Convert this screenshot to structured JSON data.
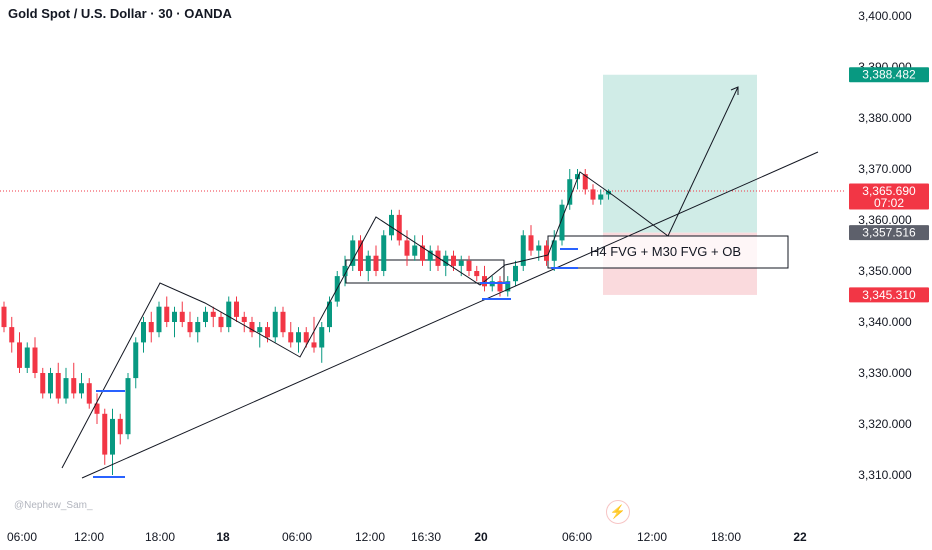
{
  "header": {
    "title": "Gold Spot / U.S. Dollar · 30 · OANDA"
  },
  "watermark": "@Nephew_Sam_",
  "icons": {
    "alert": "lightning-bolt-icon"
  },
  "colors": {
    "bull": "#089981",
    "bear": "#f23645",
    "blue": "#2962ff",
    "target_zone": "#d0ece7",
    "stop_zone": "#fadadd",
    "last_price_line": "#f23645",
    "gray_tag": "#5d606b"
  },
  "chart_data": {
    "type": "candlestick",
    "symbol": "XAUUSD",
    "timeframe": "30",
    "ylim": [
      3303,
      3405
    ],
    "y_ticks": [
      "3,310.000",
      "3,320.000",
      "3,330.000",
      "3,340.000",
      "3,350.000",
      "3,360.000",
      "3,370.000",
      "3,380.000",
      "3,390.000",
      "3,400.000"
    ],
    "x_ticks": [
      {
        "label": "06:00",
        "bold": false
      },
      {
        "label": "12:00",
        "bold": false
      },
      {
        "label": "18:00",
        "bold": false
      },
      {
        "label": "18",
        "bold": true
      },
      {
        "label": "06:00",
        "bold": false
      },
      {
        "label": "12:00",
        "bold": false
      },
      {
        "label": "16:30",
        "bold": false
      },
      {
        "label": "20",
        "bold": true
      },
      {
        "label": "06:00",
        "bold": false
      },
      {
        "label": "12:00",
        "bold": false
      },
      {
        "label": "18:00",
        "bold": false
      },
      {
        "label": "22",
        "bold": true
      }
    ],
    "price_tags": [
      {
        "label": "3,388.482",
        "value": 3388.482,
        "kind": "target"
      },
      {
        "label": "3,365.690",
        "sub": "07:02",
        "value": 3365.69,
        "kind": "last"
      },
      {
        "label": "3,357.516",
        "value": 3357.516,
        "kind": "gray"
      },
      {
        "label": "3,345.310",
        "value": 3345.31,
        "kind": "stop"
      }
    ],
    "last_price": 3365.69,
    "annotation": "H4 FVG + M30 FVG + OB",
    "position": {
      "entry": 3357.516,
      "target": 3388.482,
      "stop": 3345.31
    },
    "candles": [
      {
        "o": 3343,
        "h": 3344,
        "l": 3338,
        "c": 3339
      },
      {
        "o": 3339,
        "h": 3341,
        "l": 3334,
        "c": 3336
      },
      {
        "o": 3336,
        "h": 3338,
        "l": 3330,
        "c": 3331
      },
      {
        "o": 3331,
        "h": 3336,
        "l": 3330,
        "c": 3335
      },
      {
        "o": 3335,
        "h": 3337,
        "l": 3329,
        "c": 3330
      },
      {
        "o": 3330,
        "h": 3331,
        "l": 3325,
        "c": 3326
      },
      {
        "o": 3326,
        "h": 3331,
        "l": 3325,
        "c": 3330
      },
      {
        "o": 3330,
        "h": 3332,
        "l": 3324,
        "c": 3325
      },
      {
        "o": 3325,
        "h": 3331,
        "l": 3324,
        "c": 3329
      },
      {
        "o": 3329,
        "h": 3332,
        "l": 3325,
        "c": 3326
      },
      {
        "o": 3326,
        "h": 3330,
        "l": 3325,
        "c": 3328
      },
      {
        "o": 3328,
        "h": 3329,
        "l": 3323,
        "c": 3324
      },
      {
        "o": 3324,
        "h": 3326,
        "l": 3320,
        "c": 3322
      },
      {
        "o": 3322,
        "h": 3323,
        "l": 3312,
        "c": 3314
      },
      {
        "o": 3314,
        "h": 3323,
        "l": 3310,
        "c": 3321
      },
      {
        "o": 3321,
        "h": 3322,
        "l": 3316,
        "c": 3318
      },
      {
        "o": 3318,
        "h": 3330,
        "l": 3317,
        "c": 3329
      },
      {
        "o": 3329,
        "h": 3337,
        "l": 3327,
        "c": 3336
      },
      {
        "o": 3336,
        "h": 3341,
        "l": 3334,
        "c": 3340
      },
      {
        "o": 3340,
        "h": 3342,
        "l": 3336,
        "c": 3338
      },
      {
        "o": 3338,
        "h": 3344,
        "l": 3337,
        "c": 3343
      },
      {
        "o": 3343,
        "h": 3345,
        "l": 3339,
        "c": 3340
      },
      {
        "o": 3340,
        "h": 3343,
        "l": 3337,
        "c": 3342
      },
      {
        "o": 3342,
        "h": 3344,
        "l": 3339,
        "c": 3340
      },
      {
        "o": 3340,
        "h": 3342,
        "l": 3337,
        "c": 3338
      },
      {
        "o": 3338,
        "h": 3341,
        "l": 3336,
        "c": 3340
      },
      {
        "o": 3340,
        "h": 3343,
        "l": 3339,
        "c": 3342
      },
      {
        "o": 3342,
        "h": 3343,
        "l": 3339,
        "c": 3341
      },
      {
        "o": 3341,
        "h": 3342,
        "l": 3338,
        "c": 3339
      },
      {
        "o": 3339,
        "h": 3345,
        "l": 3338,
        "c": 3344
      },
      {
        "o": 3344,
        "h": 3345,
        "l": 3340,
        "c": 3341
      },
      {
        "o": 3341,
        "h": 3342,
        "l": 3338,
        "c": 3340
      },
      {
        "o": 3340,
        "h": 3341,
        "l": 3337,
        "c": 3338
      },
      {
        "o": 3338,
        "h": 3340,
        "l": 3335,
        "c": 3339
      },
      {
        "o": 3339,
        "h": 3340,
        "l": 3336,
        "c": 3337
      },
      {
        "o": 3337,
        "h": 3343,
        "l": 3336,
        "c": 3342
      },
      {
        "o": 3342,
        "h": 3343,
        "l": 3337,
        "c": 3338
      },
      {
        "o": 3338,
        "h": 3340,
        "l": 3335,
        "c": 3336
      },
      {
        "o": 3336,
        "h": 3339,
        "l": 3334,
        "c": 3338
      },
      {
        "o": 3338,
        "h": 3339,
        "l": 3335,
        "c": 3336
      },
      {
        "o": 3336,
        "h": 3341,
        "l": 3334,
        "c": 3335
      },
      {
        "o": 3335,
        "h": 3340,
        "l": 3332,
        "c": 3339
      },
      {
        "o": 3339,
        "h": 3345,
        "l": 3338,
        "c": 3344
      },
      {
        "o": 3344,
        "h": 3350,
        "l": 3343,
        "c": 3349
      },
      {
        "o": 3349,
        "h": 3353,
        "l": 3347,
        "c": 3351
      },
      {
        "o": 3351,
        "h": 3357,
        "l": 3350,
        "c": 3356
      },
      {
        "o": 3356,
        "h": 3357,
        "l": 3349,
        "c": 3350
      },
      {
        "o": 3350,
        "h": 3354,
        "l": 3348,
        "c": 3353
      },
      {
        "o": 3353,
        "h": 3355,
        "l": 3349,
        "c": 3350
      },
      {
        "o": 3350,
        "h": 3358,
        "l": 3349,
        "c": 3357
      },
      {
        "o": 3357,
        "h": 3362,
        "l": 3356,
        "c": 3361
      },
      {
        "o": 3361,
        "h": 3362,
        "l": 3355,
        "c": 3356
      },
      {
        "o": 3356,
        "h": 3358,
        "l": 3351,
        "c": 3353
      },
      {
        "o": 3353,
        "h": 3357,
        "l": 3352,
        "c": 3355
      },
      {
        "o": 3355,
        "h": 3357,
        "l": 3351,
        "c": 3352
      },
      {
        "o": 3352,
        "h": 3355,
        "l": 3350,
        "c": 3354
      },
      {
        "o": 3354,
        "h": 3355,
        "l": 3350,
        "c": 3351
      },
      {
        "o": 3351,
        "h": 3354,
        "l": 3349,
        "c": 3353
      },
      {
        "o": 3353,
        "h": 3354,
        "l": 3350,
        "c": 3351
      },
      {
        "o": 3351,
        "h": 3353,
        "l": 3349,
        "c": 3352
      },
      {
        "o": 3352,
        "h": 3353,
        "l": 3349,
        "c": 3350
      },
      {
        "o": 3350,
        "h": 3351,
        "l": 3348,
        "c": 3349
      },
      {
        "o": 3349,
        "h": 3351,
        "l": 3346,
        "c": 3347
      },
      {
        "o": 3347,
        "h": 3349,
        "l": 3346,
        "c": 3348
      },
      {
        "o": 3348,
        "h": 3349,
        "l": 3345,
        "c": 3346
      },
      {
        "o": 3346,
        "h": 3349,
        "l": 3345,
        "c": 3348
      },
      {
        "o": 3348,
        "h": 3352,
        "l": 3347,
        "c": 3351
      },
      {
        "o": 3351,
        "h": 3358,
        "l": 3350,
        "c": 3357
      },
      {
        "o": 3357,
        "h": 3359,
        "l": 3353,
        "c": 3354
      },
      {
        "o": 3354,
        "h": 3356,
        "l": 3352,
        "c": 3355
      },
      {
        "o": 3355,
        "h": 3356,
        "l": 3351,
        "c": 3352
      },
      {
        "o": 3352,
        "h": 3358,
        "l": 3350,
        "c": 3356
      },
      {
        "o": 3356,
        "h": 3364,
        "l": 3355,
        "c": 3363
      },
      {
        "o": 3363,
        "h": 3370,
        "l": 3362,
        "c": 3368
      },
      {
        "o": 3368,
        "h": 3370,
        "l": 3366,
        "c": 3369
      },
      {
        "o": 3369,
        "h": 3370,
        "l": 3365,
        "c": 3366
      },
      {
        "o": 3366,
        "h": 3367,
        "l": 3363,
        "c": 3364
      },
      {
        "o": 3364,
        "h": 3366,
        "l": 3363,
        "c": 3365
      },
      {
        "o": 3365,
        "h": 3366,
        "l": 3364,
        "c": 3365.69
      }
    ]
  }
}
